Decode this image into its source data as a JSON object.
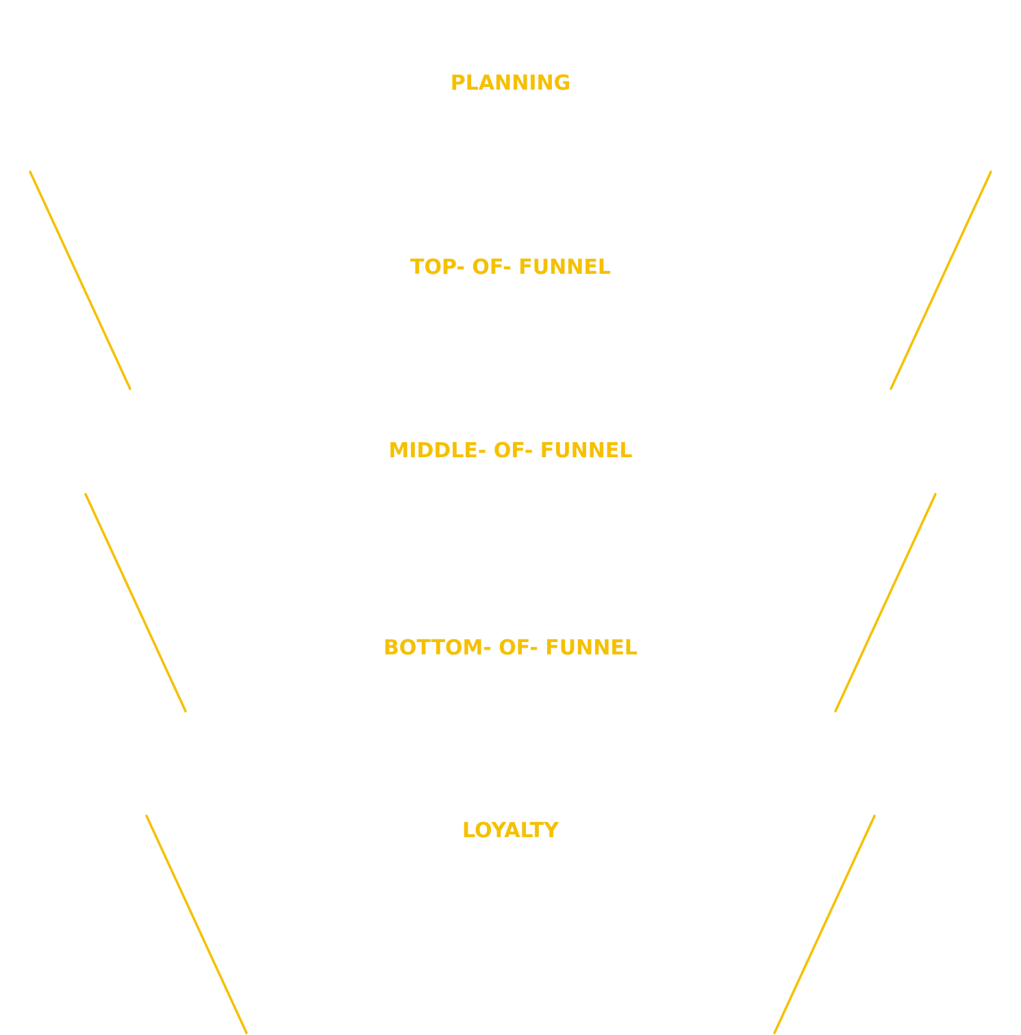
{
  "accent_color": "#F5C000",
  "background_color": "#FFFFFF",
  "funnel": {
    "stages": [
      {
        "label": "PLANNING"
      },
      {
        "label": "TOP- OF- FUNNEL"
      },
      {
        "label": "MIDDLE- OF- FUNNEL"
      },
      {
        "label": "BOTTOM- OF- FUNNEL"
      },
      {
        "label": "LOYALTY"
      }
    ]
  }
}
